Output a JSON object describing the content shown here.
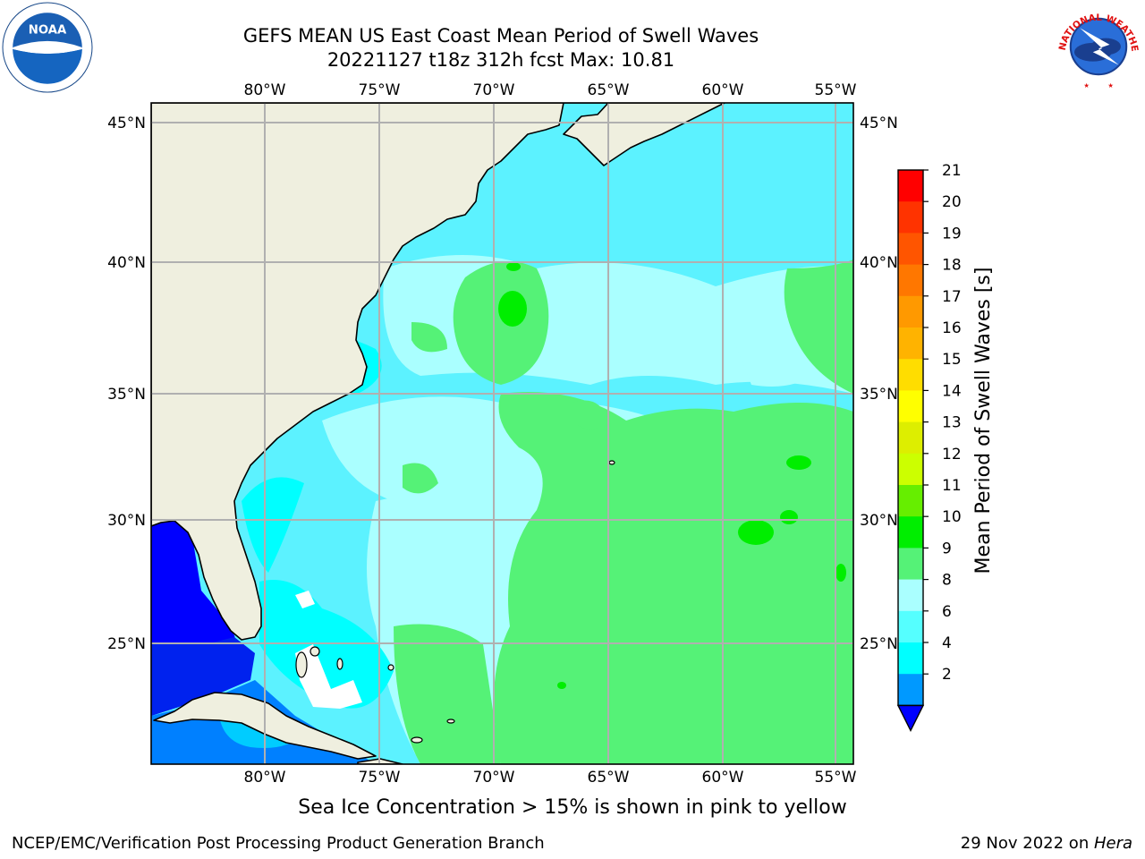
{
  "header": {
    "title_line1": "GEFS MEAN US East Coast Mean Period of Swell Waves",
    "title_line2": "20221127 t18z 312h fcst   Max: 10.81"
  },
  "logos": {
    "left": {
      "icon": "noaa-logo-icon",
      "text": "NOAA"
    },
    "right": {
      "icon": "national-weather-service-logo-icon",
      "text": "NATIONAL WEATHER SERVICE"
    }
  },
  "map": {
    "longitude_labels": [
      "80°W",
      "75°W",
      "70°W",
      "65°W",
      "60°W",
      "55°W"
    ],
    "latitude_labels": [
      "45°N",
      "40°N",
      "35°N",
      "30°N",
      "25°N"
    ],
    "land_color": "#efefdf",
    "grid_color": "#b0b0b0"
  },
  "colorbar": {
    "label": "Mean Period of Swell Waves [s]",
    "ticks": [
      "21",
      "20",
      "19",
      "18",
      "17",
      "16",
      "15",
      "14",
      "13",
      "12",
      "11",
      "10",
      "9",
      "8",
      "6",
      "4",
      "2"
    ],
    "colors_top_to_bottom": [
      "#ff0000",
      "#ff3300",
      "#ff5500",
      "#ff7700",
      "#ff9900",
      "#ffb300",
      "#ffdd00",
      "#ffff00",
      "#ddee00",
      "#ccff00",
      "#66ee00",
      "#00ee00",
      "#55f277",
      "#aaffff",
      "#55ffff",
      "#00ffff",
      "#0099ff",
      "#0000ff"
    ]
  },
  "chart_data": {
    "type": "heatmap",
    "title": "GEFS MEAN US East Coast Mean Period of Swell Waves",
    "subtitle": "20221127 t18z 312h fcst   Max: 10.81",
    "colorbar_label": "Mean Period of Swell Waves [s]",
    "levels": [
      2,
      4,
      6,
      8,
      9,
      10,
      11,
      12,
      13,
      14,
      15,
      16,
      17,
      18,
      19,
      20,
      21
    ],
    "max": 10.81,
    "lon_range": [
      -85,
      -54.5
    ],
    "lat_range": [
      20.5,
      45.8
    ]
  },
  "captions": {
    "sea_ice_note": "Sea Ice Concentration > 15% is shown in pink to yellow",
    "producer": "NCEP/EMC/Verification Post Processing Product Generation Branch",
    "date": "29 Nov 2022 on ",
    "machine": "Hera"
  }
}
